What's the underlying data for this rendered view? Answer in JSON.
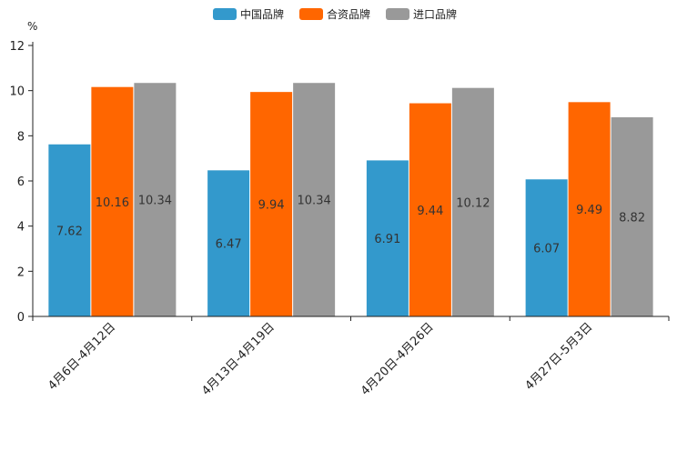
{
  "chart_data": {
    "type": "bar",
    "title": "",
    "ylabel": "%",
    "xlabel": "",
    "ylim": [
      0,
      12
    ],
    "yticks": [
      0,
      2,
      4,
      6,
      8,
      10,
      12
    ],
    "categories": [
      "4月6日-4月12日",
      "4月13日-4月19日",
      "4月20日-4月26日",
      "4月27日-5月3日"
    ],
    "series": [
      {
        "name": "中国品牌",
        "color": "#3399cc",
        "values": [
          7.62,
          6.47,
          6.91,
          6.07
        ]
      },
      {
        "name": "合资品牌",
        "color": "#ff6600",
        "values": [
          10.16,
          9.94,
          9.44,
          9.49
        ]
      },
      {
        "name": "进口品牌",
        "color": "#999999",
        "values": [
          10.34,
          10.34,
          10.12,
          8.82
        ]
      }
    ],
    "legend": "top-center",
    "grid": false
  }
}
